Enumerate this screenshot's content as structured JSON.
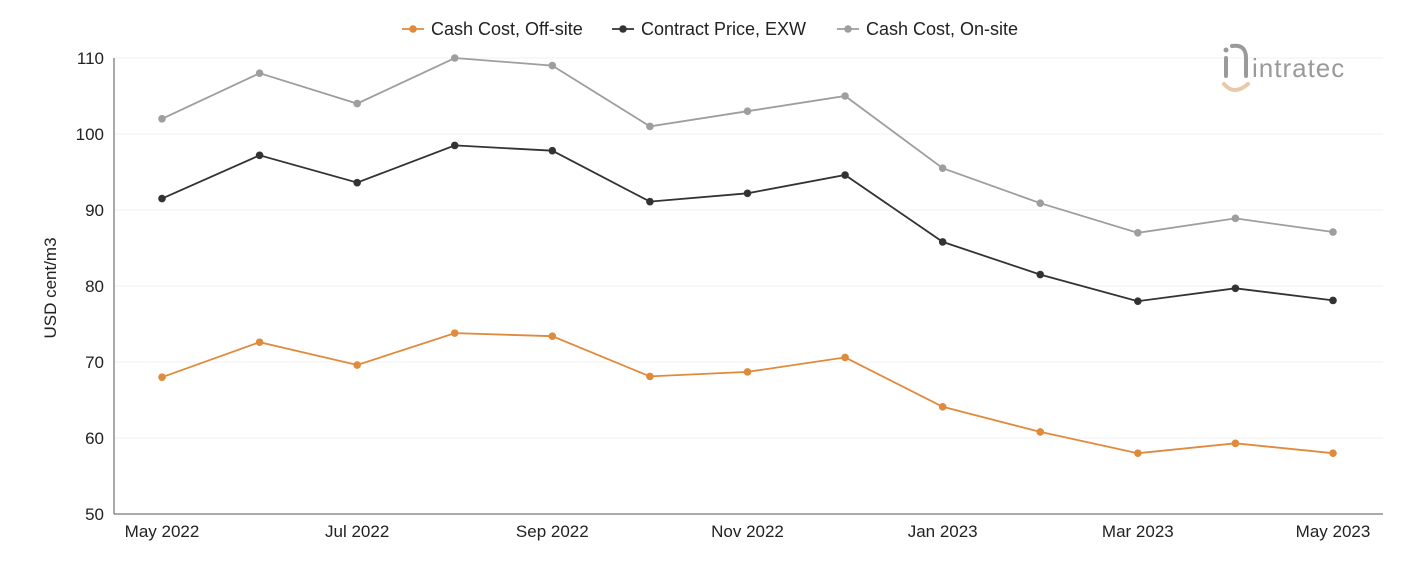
{
  "chart_data": {
    "type": "line",
    "title": "",
    "xlabel": "",
    "ylabel": "USD cent/m3",
    "ylim": [
      50,
      110
    ],
    "yticks": [
      50,
      60,
      70,
      80,
      90,
      100,
      110
    ],
    "categories": [
      "May 2022",
      "Jun 2022",
      "Jul 2022",
      "Aug 2022",
      "Sep 2022",
      "Oct 2022",
      "Nov 2022",
      "Dec 2022",
      "Jan 2023",
      "Feb 2023",
      "Mar 2023",
      "Apr 2023",
      "May 2023"
    ],
    "tick_labels": [
      "May 2022",
      "",
      "Jul 2022",
      "",
      "Sep 2022",
      "",
      "Nov 2022",
      "",
      "Jan 2023",
      "",
      "Mar 2023",
      "",
      "May 2023"
    ],
    "grid": true,
    "legend_position": "top-center",
    "series": [
      {
        "name": "Cash Cost, Off-site",
        "color": "#e08a3c",
        "values": [
          68.0,
          72.6,
          69.6,
          73.8,
          73.4,
          68.1,
          68.7,
          70.6,
          64.1,
          60.8,
          58.0,
          59.3,
          58.0
        ]
      },
      {
        "name": "Contract Price, EXW",
        "color": "#333333",
        "values": [
          91.5,
          97.2,
          93.6,
          98.5,
          97.8,
          91.1,
          92.2,
          94.6,
          85.8,
          81.5,
          78.0,
          79.7,
          78.1
        ]
      },
      {
        "name": "Cash Cost, On-site",
        "color": "#9e9e9e",
        "values": [
          102.0,
          108.0,
          104.0,
          110.0,
          109.0,
          101.0,
          103.0,
          105.0,
          95.5,
          90.9,
          87.0,
          88.9,
          87.1
        ]
      }
    ]
  },
  "logo": {
    "text": "intratec",
    "icon": "intratec-logo-icon",
    "accent": "#e8c9a8"
  }
}
